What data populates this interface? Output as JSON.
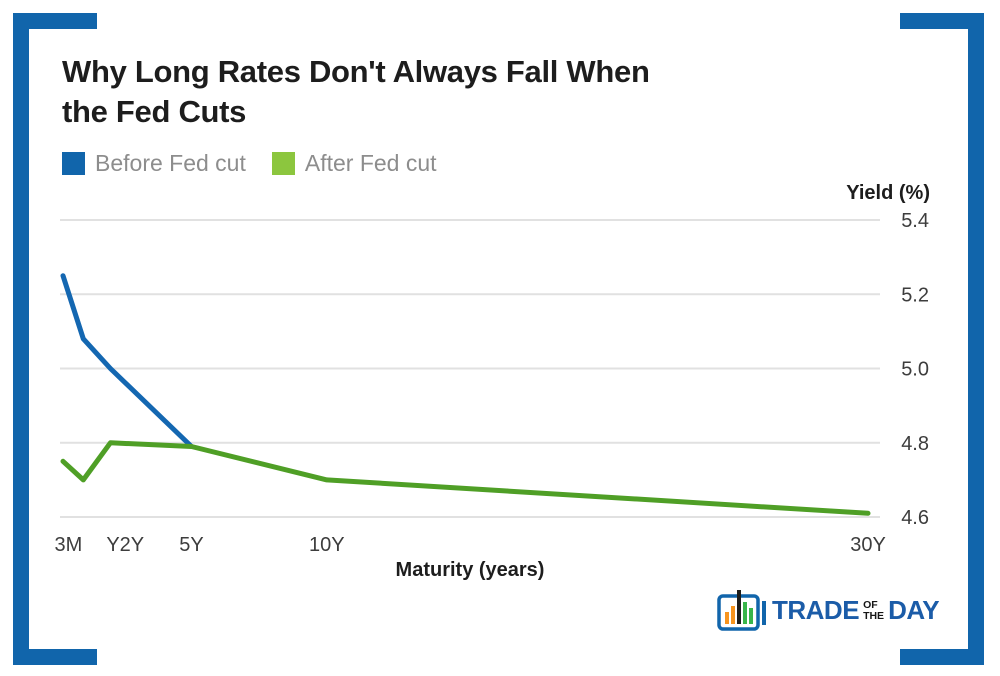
{
  "header": {
    "title_line1": "Why Long Rates Don't Always Fall When",
    "title_line2": "the Fed Cuts"
  },
  "legend": {
    "items": [
      {
        "label": "Before Fed cut",
        "color": "#1165ab"
      },
      {
        "label": "After Fed cut",
        "color": "#8cc63e"
      }
    ]
  },
  "chart_data": {
    "type": "line",
    "title": "Why Long Rates Don't Always Fall When the Fed Cuts",
    "xlabel": "Maturity (years)",
    "ylabel": "Yield (%)",
    "grid": "horizontal",
    "legend_position": "top-left",
    "ylim": [
      4.6,
      5.4
    ],
    "xlim_years": [
      0.25,
      30
    ],
    "y_ticks": [
      {
        "label": "5.4",
        "value": 5.4
      },
      {
        "label": "5.2",
        "value": 5.2
      },
      {
        "label": "5.0",
        "value": 5.0
      },
      {
        "label": "4.8",
        "value": 4.8
      },
      {
        "label": "4.6",
        "value": 4.6
      }
    ],
    "x_ticks": [
      {
        "label": "3M",
        "years": 0.45
      },
      {
        "label": "Y2Y",
        "years": 2.55
      },
      {
        "label": "5Y",
        "years": 5
      },
      {
        "label": "10Y",
        "years": 10
      },
      {
        "label": "30Y",
        "years": 30
      }
    ],
    "series": [
      {
        "name": "Before Fed cut",
        "color": "#1467b1",
        "points": [
          {
            "years": 0.25,
            "yield": 5.25
          },
          {
            "years": 1,
            "yield": 5.08
          },
          {
            "years": 2,
            "yield": 5.0
          },
          {
            "years": 5,
            "yield": 4.79
          }
        ]
      },
      {
        "name": "After Fed cut",
        "color": "#4f9f26",
        "points": [
          {
            "years": 0.25,
            "yield": 4.75
          },
          {
            "years": 1,
            "yield": 4.7
          },
          {
            "years": 2,
            "yield": 4.8
          },
          {
            "years": 5,
            "yield": 4.79
          },
          {
            "years": 10,
            "yield": 4.7
          },
          {
            "years": 30,
            "yield": 4.61
          }
        ]
      }
    ]
  },
  "logo": {
    "word1": "TRADE",
    "word2": "OF",
    "word3": "THE",
    "word4": "DAY",
    "icon": "bar-chart-logo-icon",
    "brand_blue": "#1b5ca8"
  }
}
